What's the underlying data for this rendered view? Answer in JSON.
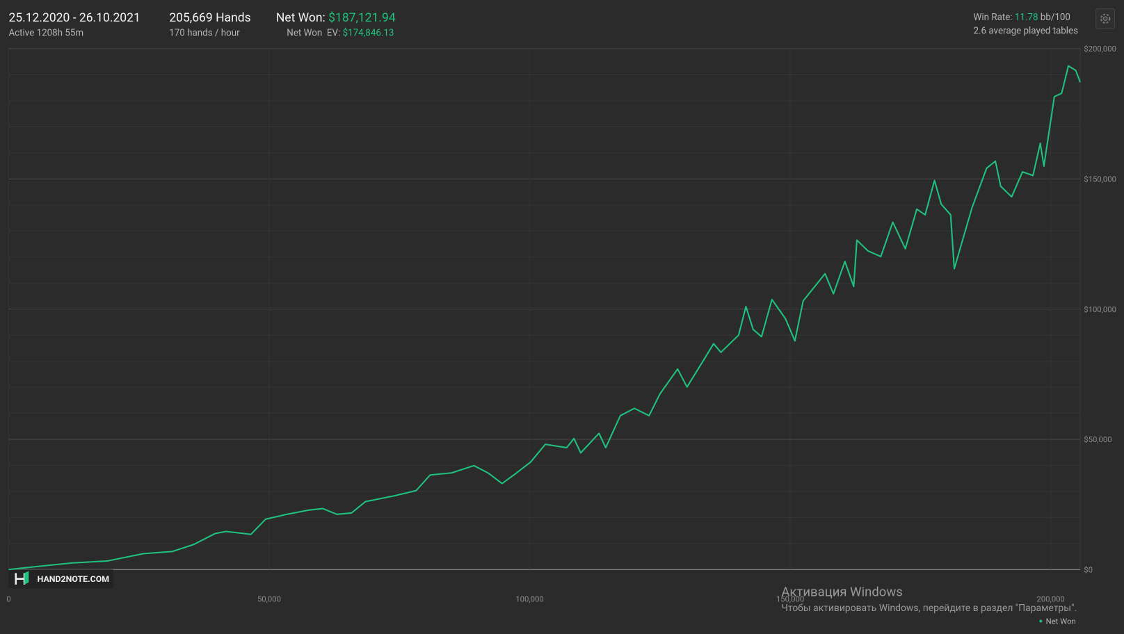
{
  "header": {
    "date_range": "25.12.2020 - 26.10.2021",
    "active": "Active 1208h 55m",
    "hands": "205,669 Hands",
    "hands_per_hour": "170 hands / hour",
    "net_won_label": "Net Won:",
    "net_won": "$187,121.94",
    "net_won_ev_label": "Net Won  EV:",
    "net_won_ev": "$174,846.13",
    "win_rate_label": "Win Rate:",
    "win_rate": "11.78",
    "win_rate_unit": "bb/100",
    "tables": "2.6 average played tables"
  },
  "chart_data": {
    "type": "line",
    "x": [
      0,
      6600,
      12100,
      19000,
      25900,
      31400,
      35500,
      39600,
      41700,
      46500,
      49300,
      53400,
      57500,
      60300,
      63000,
      65800,
      68500,
      74000,
      78200,
      80900,
      85000,
      89300,
      92000,
      94700,
      97500,
      100200,
      103000,
      107100,
      108500,
      109800,
      113300,
      114600,
      117400,
      120100,
      122900,
      125000,
      128400,
      130200,
      133200,
      135300,
      136700,
      140100,
      141500,
      142900,
      144500,
      146500,
      149100,
      150900,
      152500,
      156700,
      158300,
      160500,
      162200,
      162800,
      164900,
      167400,
      169700,
      172100,
      174300,
      175900,
      177700,
      179000,
      180800,
      181500,
      182900,
      184900,
      187700,
      189400,
      190400,
      192500,
      194600,
      196600,
      198000,
      198700,
      200700,
      202100,
      203400,
      204800,
      205669
    ],
    "series": [
      {
        "name": "Net Won",
        "color": "#1fc27f",
        "values": [
          0,
          1400,
          2500,
          3300,
          6100,
          6900,
          9600,
          13800,
          14600,
          13500,
          19300,
          21200,
          22800,
          23400,
          21200,
          21700,
          26100,
          28300,
          30300,
          36300,
          37100,
          39900,
          37100,
          33000,
          37100,
          41300,
          48100,
          46800,
          50300,
          44800,
          52300,
          46800,
          59100,
          61900,
          59100,
          67400,
          77000,
          70100,
          79800,
          86700,
          83400,
          90000,
          101000,
          92200,
          89400,
          103700,
          96300,
          87800,
          103200,
          113600,
          105900,
          118300,
          108700,
          126500,
          122400,
          120200,
          133400,
          123200,
          138400,
          136200,
          149400,
          140300,
          136200,
          115500,
          125200,
          138900,
          154100,
          156800,
          147200,
          143100,
          152700,
          151300,
          163700,
          154900,
          181600,
          182900,
          193400,
          191700,
          187122
        ]
      }
    ],
    "xlim": [
      0,
      205669
    ],
    "xticks": [
      0,
      {
        "value": 50000,
        "label": "50,000"
      },
      {
        "value": 100000,
        "label": "100,000"
      },
      {
        "value": 150000,
        "label": "150,000"
      },
      {
        "value": 200000,
        "label": "200,000"
      }
    ],
    "ylim": [
      0,
      200000
    ],
    "yticks": [
      {
        "value": 0,
        "label": "$0"
      },
      {
        "value": 50000,
        "label": "$50,000"
      },
      {
        "value": 100000,
        "label": "$100,000"
      },
      {
        "value": 150000,
        "label": "$150,000"
      },
      {
        "value": 200000,
        "label": "$200,000"
      }
    ],
    "yminor": [
      10000,
      20000,
      30000,
      40000,
      60000,
      70000,
      80000,
      90000,
      110000,
      120000,
      130000,
      140000,
      160000,
      170000,
      180000,
      190000
    ],
    "grid": true
  },
  "watermark": "HAND2NOTE.COM",
  "windows_notice": {
    "title": "Активация Windows",
    "text": "Чтобы активировать Windows, перейдите в раздел \"Параметры\"."
  }
}
